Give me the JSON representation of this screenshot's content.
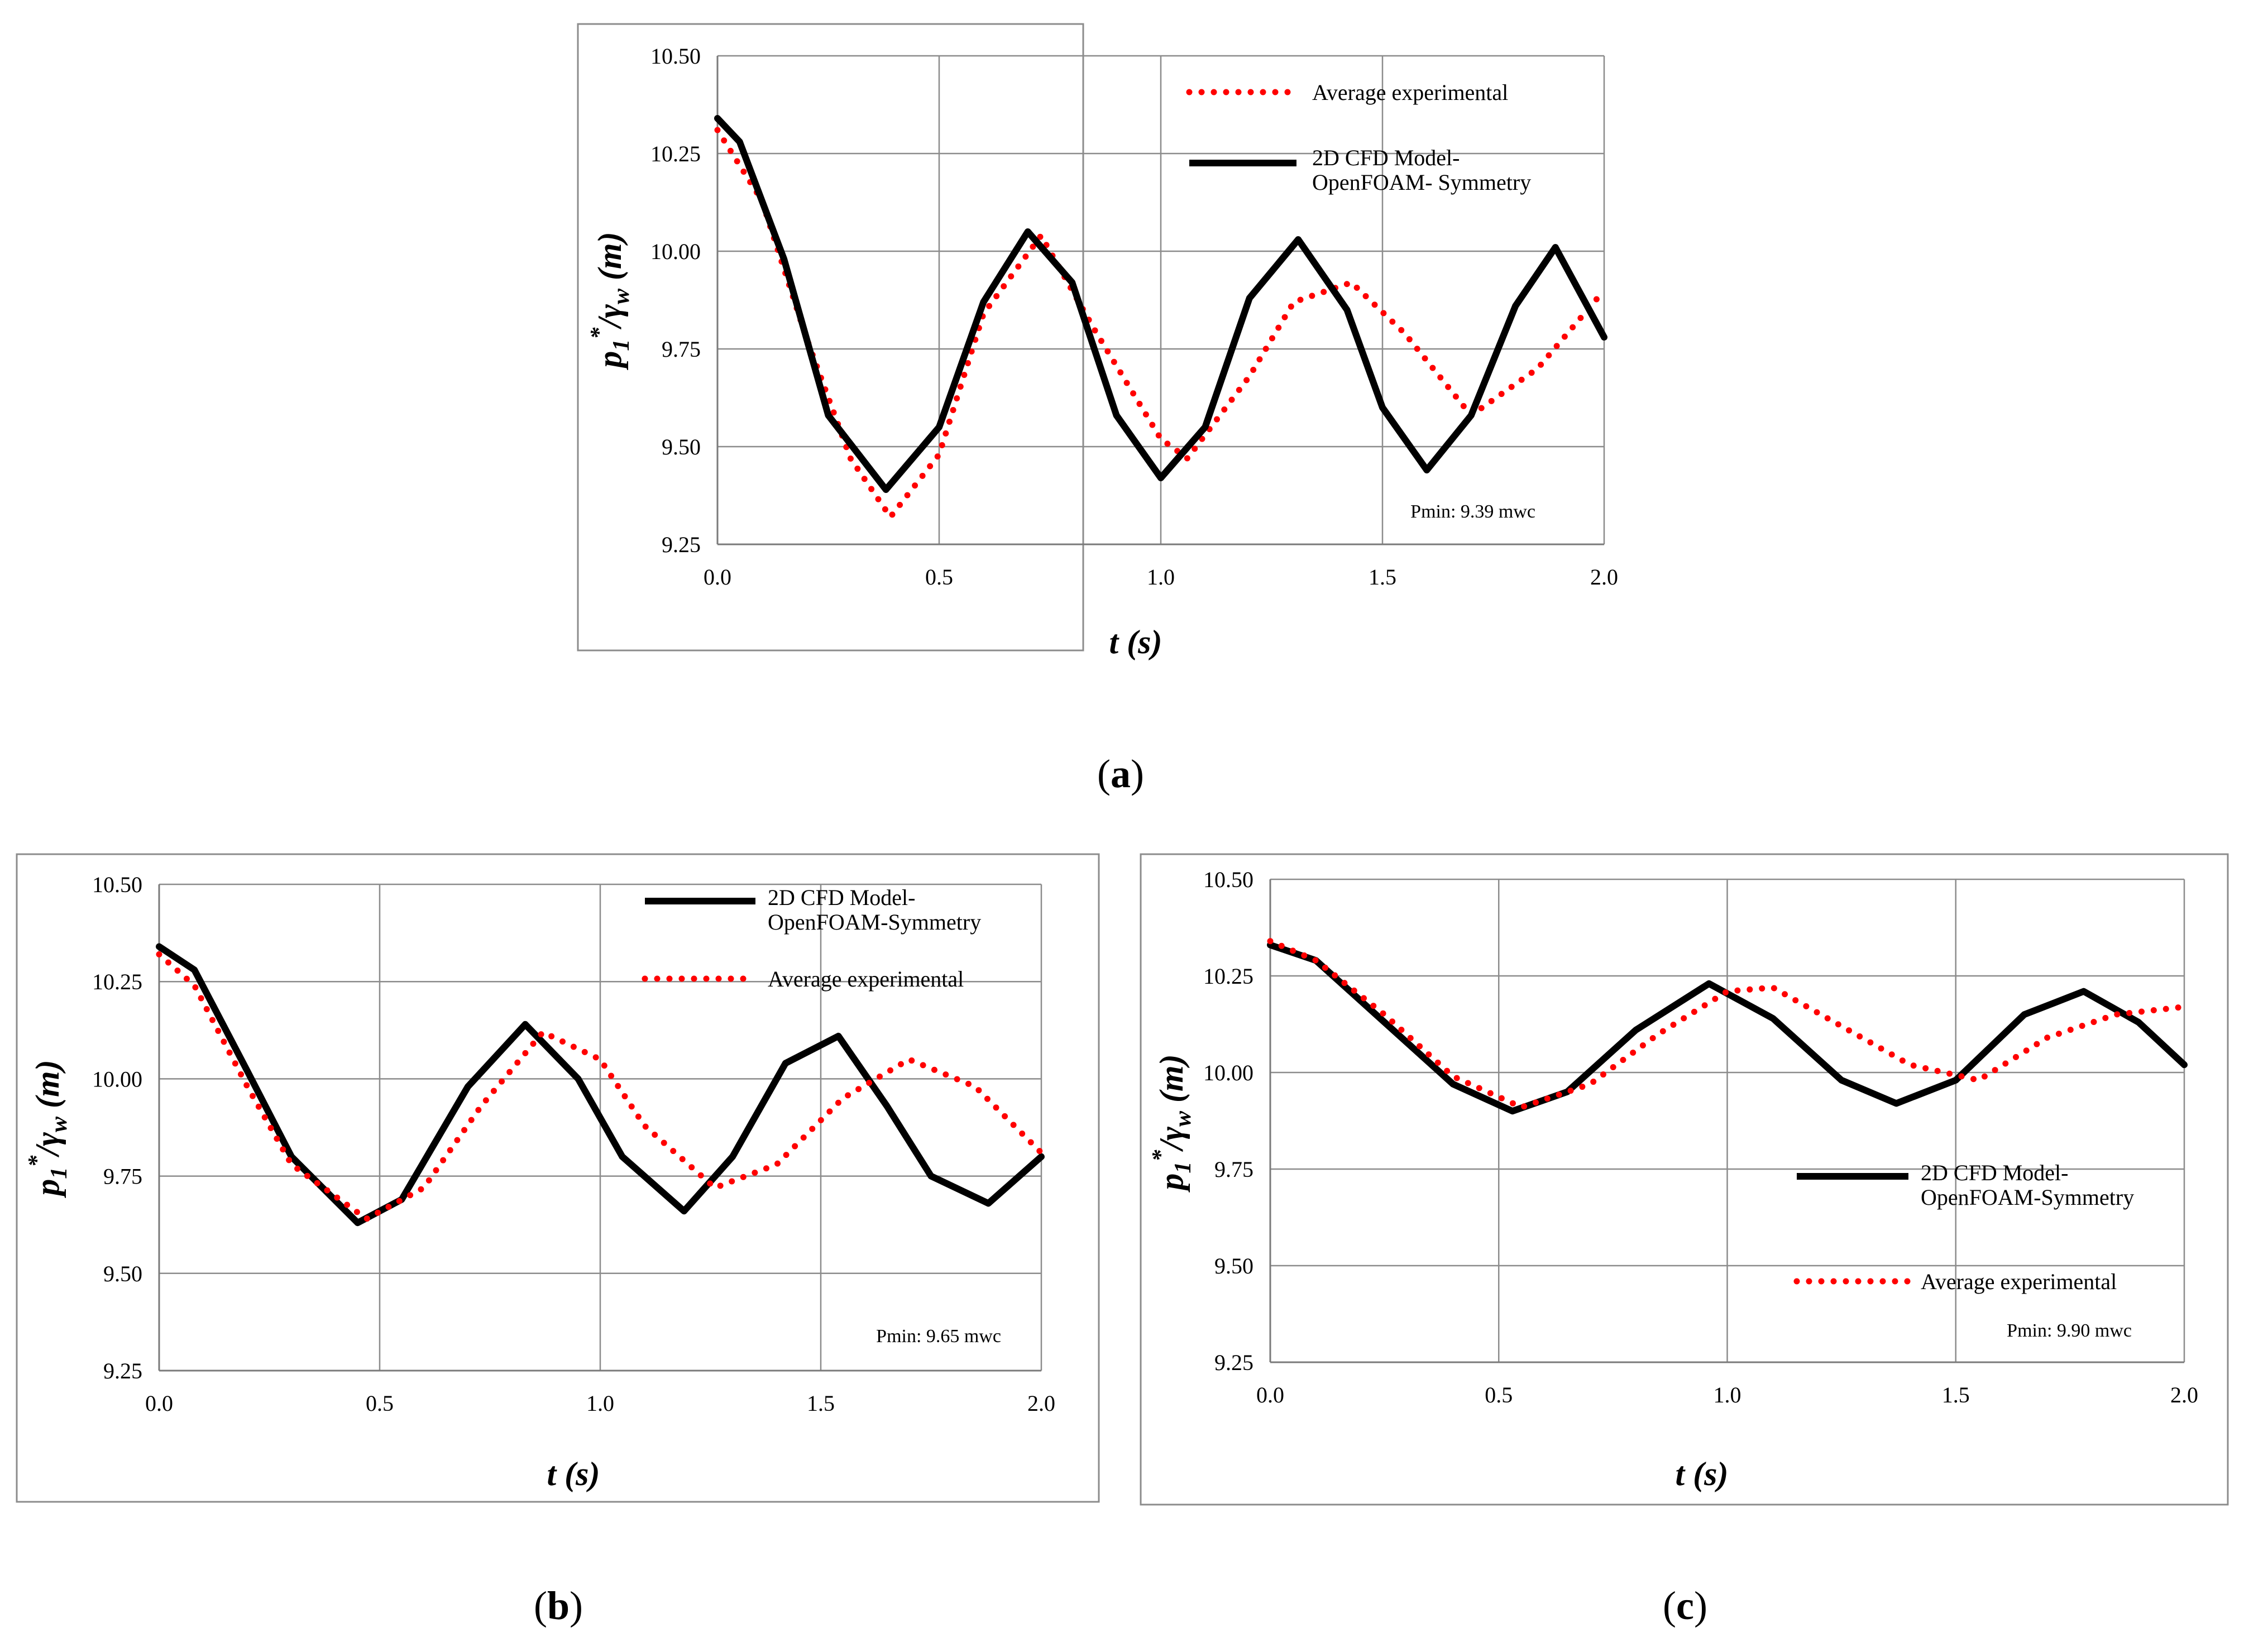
{
  "chart_data": [
    {
      "type": "line",
      "panel_label": "a",
      "xlabel": "t (s)",
      "ylabel_parts": {
        "main": "p",
        "sub1": "1",
        "sup": "*",
        "slash": "/γ",
        "sub2": "w",
        "unit": " (m)"
      },
      "xlim": [
        0,
        2
      ],
      "ylim": [
        9.25,
        10.5
      ],
      "xticks": [
        0,
        0.5,
        1,
        1.5,
        2
      ],
      "xtick_labels": [
        "0.0",
        "0.5",
        "1.0",
        "1.5",
        "2.0"
      ],
      "yticks": [
        9.25,
        9.5,
        9.75,
        10.0,
        10.25,
        10.5
      ],
      "ytick_labels": [
        "9.25",
        "9.50",
        "9.75",
        "10.00",
        "10.25",
        "10.50"
      ],
      "grid": true,
      "annotation": "Pmin: 9.39 mwc",
      "legend": [
        {
          "series": "Average experimental",
          "lines": [
            "Average experimental"
          ]
        },
        {
          "series": "2D CFD Model-OpenFOAM- Symmetry",
          "lines": [
            "2D CFD Model-",
            "OpenFOAM- Symmetry"
          ]
        }
      ],
      "series": [
        {
          "name": "Average experimental",
          "style": "dotted",
          "color": "#ff0000",
          "x": [
            0,
            0.1,
            0.2,
            0.3,
            0.39,
            0.5,
            0.6,
            0.73,
            0.85,
            1.0,
            1.06,
            1.2,
            1.3,
            1.43,
            1.55,
            1.7,
            1.85,
            2.0
          ],
          "y": [
            10.31,
            10.13,
            9.78,
            9.47,
            9.32,
            9.48,
            9.84,
            10.04,
            9.8,
            9.52,
            9.47,
            9.68,
            9.87,
            9.92,
            9.79,
            9.58,
            9.7,
            9.9
          ]
        },
        {
          "name": "2D CFD Model-OpenFOAM- Symmetry",
          "style": "solid",
          "color": "#000000",
          "x": [
            0,
            0.05,
            0.15,
            0.25,
            0.38,
            0.5,
            0.6,
            0.7,
            0.8,
            0.9,
            1.0,
            1.1,
            1.2,
            1.31,
            1.42,
            1.5,
            1.6,
            1.7,
            1.8,
            1.89,
            2.0
          ],
          "y": [
            10.34,
            10.28,
            9.98,
            9.58,
            9.39,
            9.55,
            9.87,
            10.05,
            9.92,
            9.58,
            9.42,
            9.55,
            9.88,
            10.03,
            9.85,
            9.6,
            9.44,
            9.58,
            9.86,
            10.01,
            9.78
          ]
        }
      ]
    },
    {
      "type": "line",
      "panel_label": "b",
      "xlabel": "t (s)",
      "ylabel_parts": {
        "main": "p",
        "sub1": "1",
        "sup": "*",
        "slash": "/γ",
        "sub2": "w",
        "unit": " (m)"
      },
      "xlim": [
        0,
        2
      ],
      "ylim": [
        9.25,
        10.5
      ],
      "xticks": [
        0,
        0.5,
        1,
        1.5,
        2
      ],
      "xtick_labels": [
        "0.0",
        "0.5",
        "1.0",
        "1.5",
        "2.0"
      ],
      "yticks": [
        9.25,
        9.5,
        9.75,
        10.0,
        10.25,
        10.5
      ],
      "ytick_labels": [
        "9.25",
        "9.50",
        "9.75",
        "10.00",
        "10.25",
        "10.50"
      ],
      "grid": true,
      "annotation": "Pmin: 9.65 mwc",
      "legend": [
        {
          "series": "2D CFD Model-OpenFOAM-Symmetry",
          "lines": [
            "2D CFD Model-",
            "OpenFOAM-Symmetry"
          ]
        },
        {
          "series": "Average experimental",
          "lines": [
            "Average experimental"
          ]
        }
      ],
      "series": [
        {
          "name": "2D CFD Model-OpenFOAM-Symmetry",
          "style": "solid",
          "color": "#000000",
          "x": [
            0,
            0.08,
            0.2,
            0.3,
            0.45,
            0.55,
            0.7,
            0.83,
            0.95,
            1.05,
            1.19,
            1.3,
            1.42,
            1.54,
            1.65,
            1.75,
            1.88,
            2.0
          ],
          "y": [
            10.34,
            10.28,
            10.02,
            9.8,
            9.63,
            9.69,
            9.98,
            10.14,
            10.0,
            9.8,
            9.66,
            9.8,
            10.04,
            10.11,
            9.93,
            9.75,
            9.68,
            9.8
          ]
        },
        {
          "name": "Average experimental",
          "style": "dotted",
          "color": "#ff0000",
          "x": [
            0,
            0.08,
            0.2,
            0.3,
            0.47,
            0.6,
            0.73,
            0.87,
            1.0,
            1.1,
            1.26,
            1.4,
            1.55,
            1.7,
            1.85,
            2.0
          ],
          "y": [
            10.32,
            10.24,
            9.98,
            9.78,
            9.64,
            9.72,
            9.93,
            10.12,
            10.05,
            9.88,
            9.72,
            9.78,
            9.95,
            10.05,
            9.98,
            9.81
          ]
        }
      ]
    },
    {
      "type": "line",
      "panel_label": "c",
      "xlabel": "t (s)",
      "ylabel_parts": {
        "main": "p",
        "sub1": "1",
        "sup": "*",
        "slash": "/γ",
        "sub2": "w",
        "unit": " (m)"
      },
      "xlim": [
        0,
        2
      ],
      "ylim": [
        9.25,
        10.5
      ],
      "xticks": [
        0,
        0.5,
        1,
        1.5,
        2
      ],
      "xtick_labels": [
        "0.0",
        "0.5",
        "1.0",
        "1.5",
        "2.0"
      ],
      "yticks": [
        9.25,
        9.5,
        9.75,
        10.0,
        10.25,
        10.5
      ],
      "ytick_labels": [
        "9.25",
        "9.50",
        "9.75",
        "10.00",
        "10.25",
        "10.50"
      ],
      "grid": true,
      "annotation": "Pmin: 9.90 mwc",
      "legend": [
        {
          "series": "2D CFD Model-OpenFOAM-Symmetry",
          "lines": [
            "2D CFD Model-",
            "OpenFOAM-Symmetry"
          ]
        },
        {
          "series": "Average experimental",
          "lines": [
            "Average experimental"
          ]
        }
      ],
      "series": [
        {
          "name": "2D CFD Model-OpenFOAM-Symmetry",
          "style": "solid",
          "color": "#000000",
          "x": [
            0,
            0.1,
            0.25,
            0.4,
            0.53,
            0.65,
            0.8,
            0.96,
            1.1,
            1.25,
            1.37,
            1.5,
            1.65,
            1.78,
            1.9,
            2.0
          ],
          "y": [
            10.33,
            10.29,
            10.13,
            9.97,
            9.9,
            9.95,
            10.11,
            10.23,
            10.14,
            9.98,
            9.92,
            9.98,
            10.15,
            10.21,
            10.13,
            10.02
          ]
        },
        {
          "name": "Average experimental",
          "style": "dotted",
          "color": "#ff0000",
          "x": [
            0,
            0.1,
            0.25,
            0.4,
            0.55,
            0.7,
            0.85,
            1.0,
            1.1,
            1.25,
            1.4,
            1.55,
            1.7,
            1.85,
            2.0
          ],
          "y": [
            10.34,
            10.29,
            10.15,
            9.99,
            9.91,
            9.97,
            10.1,
            10.21,
            10.22,
            10.12,
            10.02,
            9.98,
            10.09,
            10.15,
            10.17
          ]
        }
      ]
    }
  ]
}
